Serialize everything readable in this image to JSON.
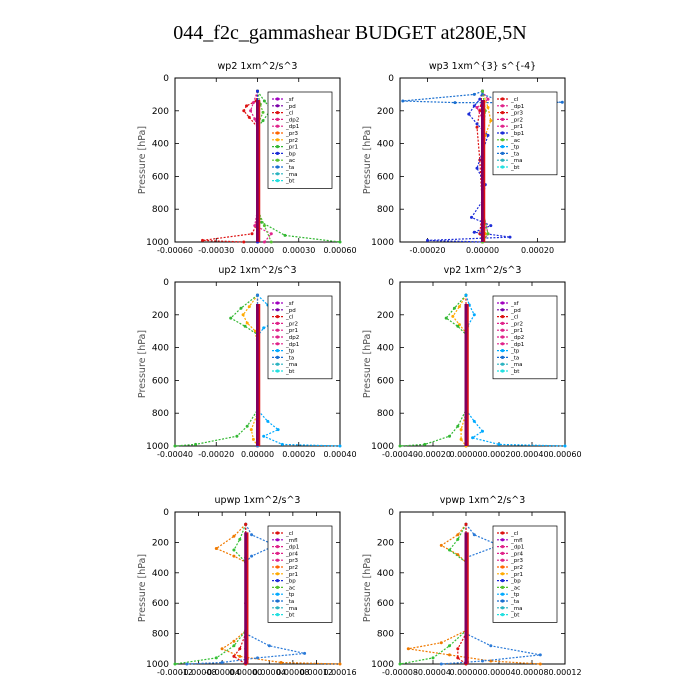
{
  "title": "044_f2c_gammashear  BUDGET at280E,5N",
  "colors": {
    "sf": "#a000c0",
    "pd": "#7a00a8",
    "cl": "#dd1111",
    "dp": "#e0238a",
    "pr1": "#33b833",
    "pr2": "#ffaa00",
    "pr3": "#ff6600",
    "pr4": "#d43030",
    "bp": "#1d2dd8",
    "ac": "#55c030",
    "tp": "#00aaff",
    "ta": "#1a6fd0",
    "ma": "#2bb3c0",
    "bt": "#22e0e0",
    "mfl": "#a000c0",
    "grey": "#8c8c8c",
    "main": "#800060",
    "orange": "#f07a00",
    "green": "#35c035",
    "blue": "#2a7ad8"
  },
  "chart_data": [
    {
      "type": "line",
      "id": "wp2",
      "title": "wp2   1xm^2/s^3",
      "ylabel": "Pressure  [hPa]",
      "ylim": [
        0,
        1000
      ],
      "xlim": [
        -0.0006,
        0.0006
      ],
      "xticks": [
        -0.0006,
        -0.0003,
        0.0,
        0.0003,
        0.0006
      ],
      "xtick_labels": [
        "-0.00060",
        "-0.00030",
        "0.00000",
        "0.00030",
        "0.00060"
      ],
      "yticks": [
        0,
        200,
        400,
        600,
        800,
        1000
      ],
      "legend_entries": [
        "_sf",
        "_pd",
        "_cl",
        "_dp2",
        "_dp1",
        "_pr3",
        "_pr2",
        "_pr1",
        "_bp",
        "_ac",
        "_ta",
        "_ma",
        "_bt"
      ],
      "series": [
        {
          "name": "_sf",
          "color": "sf",
          "x": [
            0,
            0,
            0,
            0,
            0,
            0
          ],
          "y": [
            80,
            200,
            400,
            600,
            800,
            1000
          ]
        },
        {
          "name": "_pd",
          "color": "pd",
          "x": [
            0,
            0,
            0,
            0,
            0,
            0
          ],
          "y": [
            80,
            200,
            400,
            600,
            800,
            1000
          ]
        },
        {
          "name": "_cl",
          "color": "cl",
          "x": [
            0,
            -1e-05,
            -8e-05,
            -0.0001,
            -6e-05,
            0,
            0,
            -1e-05,
            -4e-05,
            -0.0004,
            -0.0001
          ],
          "y": [
            80,
            140,
            170,
            200,
            240,
            300,
            800,
            900,
            950,
            990,
            1000
          ]
        },
        {
          "name": "_dp2",
          "color": "dp",
          "x": [
            0,
            -3e-05,
            -5e-05,
            -2e-05,
            0,
            0,
            -2e-05,
            0.0001,
            5e-05
          ],
          "y": [
            80,
            150,
            200,
            250,
            300,
            800,
            900,
            950,
            1000
          ]
        },
        {
          "name": "_pr1",
          "color": "pr1",
          "x": [
            0,
            5e-05,
            0.0001,
            4e-05,
            0,
            0,
            3e-05,
            0.0002,
            0.0006
          ],
          "y": [
            80,
            140,
            190,
            260,
            300,
            800,
            880,
            960,
            1000
          ]
        },
        {
          "name": "_ac",
          "color": "ac",
          "x": [
            0,
            2e-05,
            4e-05,
            0,
            0,
            5e-05,
            0.0001
          ],
          "y": [
            80,
            160,
            210,
            290,
            800,
            900,
            1000
          ]
        },
        {
          "name": "_bp",
          "color": "bp",
          "x": [
            0,
            0,
            0,
            0,
            0
          ],
          "y": [
            80,
            300,
            600,
            900,
            1000
          ]
        }
      ]
    },
    {
      "type": "line",
      "id": "wp3",
      "title": "wp3   1xm^{3} s^{-4}",
      "ylabel": "Pressure  [hPa]",
      "ylim": [
        0,
        1000
      ],
      "xlim": [
        -0.0003,
        0.0003
      ],
      "xticks": [
        -0.0002,
        0.0,
        0.0002
      ],
      "xtick_labels": [
        "-0.00020",
        "0.00000",
        "0.00020"
      ],
      "yticks": [
        0,
        200,
        400,
        600,
        800,
        1000
      ],
      "legend_entries": [
        "_cl",
        "_dp1",
        "_pr3",
        "_pr2",
        "_pr1",
        "_bp1",
        "_ac",
        "_tp",
        "_ta",
        "_ma",
        "_bt"
      ],
      "series": [
        {
          "name": "_cl",
          "color": "cl",
          "x": [
            0,
            -1e-05,
            -2e-05,
            -1e-05,
            0,
            -1e-05,
            0
          ],
          "y": [
            80,
            200,
            300,
            500,
            800,
            950,
            1000
          ]
        },
        {
          "name": "_bp1",
          "color": "bp",
          "x": [
            0,
            -1e-05,
            -3e-05,
            -5e-05,
            -2e-05,
            2e-05,
            0,
            -2e-05,
            1e-05,
            0,
            -4e-05,
            3e-05,
            -3e-05,
            0.0001,
            -0.0002,
            0
          ],
          "y": [
            80,
            130,
            170,
            220,
            280,
            350,
            450,
            550,
            650,
            750,
            850,
            900,
            940,
            970,
            990,
            1000
          ]
        },
        {
          "name": "_dp1",
          "color": "dp",
          "x": [
            0,
            2e-05,
            -2e-05,
            0,
            0,
            2e-05,
            0
          ],
          "y": [
            80,
            130,
            180,
            250,
            800,
            950,
            1000
          ]
        },
        {
          "name": "_pr1",
          "color": "pr2",
          "x": [
            0,
            2e-05,
            3e-05,
            1e-05,
            0,
            0,
            1e-05,
            0
          ],
          "y": [
            80,
            180,
            260,
            350,
            500,
            800,
            950,
            1000
          ]
        },
        {
          "name": "_ta",
          "color": "ta",
          "x": [
            0,
            -3e-05,
            -0.00029,
            -0.0001,
            0.0001,
            0.00029,
            5e-05,
            0
          ],
          "y": [
            80,
            100,
            140,
            150,
            150,
            148,
            130,
            100
          ]
        },
        {
          "name": "_ac",
          "color": "ac",
          "x": [
            0,
            1e-05,
            0,
            0,
            2e-05,
            0
          ],
          "y": [
            80,
            200,
            400,
            800,
            950,
            1000
          ]
        }
      ]
    },
    {
      "type": "line",
      "id": "up2",
      "title": "up2   1xm^2/s^3",
      "ylabel": "Pressure  [hPa]",
      "ylim": [
        0,
        1000
      ],
      "xlim": [
        -0.0004,
        0.0004
      ],
      "xticks": [
        -0.0004,
        -0.0002,
        0.0,
        0.0002,
        0.0004
      ],
      "xtick_labels": [
        "-0.00040",
        "-0.00020",
        "0.00000",
        "0.00020",
        "0.00040"
      ],
      "yticks": [
        0,
        200,
        400,
        600,
        800,
        1000
      ],
      "legend_entries": [
        "_sf",
        "_pd",
        "_cl",
        "_pr2",
        "_pr1",
        "_dp2",
        "_dp1",
        "_tp",
        "_ta",
        "_ma",
        "_bt"
      ],
      "series": [
        {
          "name": "_cl",
          "color": "cl",
          "x": [
            0,
            0,
            0,
            0,
            0
          ],
          "y": [
            80,
            300,
            600,
            900,
            1000
          ]
        },
        {
          "name": "_pr2",
          "color": "pr2",
          "x": [
            0,
            -4e-05,
            -7e-05,
            -5e-05,
            -1e-05,
            0,
            0,
            -3e-05,
            -2e-05,
            0
          ],
          "y": [
            80,
            150,
            200,
            250,
            300,
            400,
            800,
            900,
            960,
            1000
          ]
        },
        {
          "name": "_pr1",
          "color": "pr1",
          "x": [
            0,
            -8e-05,
            -0.00013,
            -6e-05,
            0,
            0,
            -5e-05,
            -0.0001,
            -0.0003,
            -0.0004
          ],
          "y": [
            80,
            160,
            220,
            270,
            320,
            780,
            880,
            940,
            990,
            1000
          ]
        },
        {
          "name": "_tp",
          "color": "tp",
          "x": [
            0,
            5e-05,
            0.00014,
            3e-05,
            0,
            0,
            5e-05,
            0.0001,
            3e-05,
            0.00012,
            0.0004
          ],
          "y": [
            80,
            140,
            210,
            280,
            330,
            780,
            850,
            900,
            940,
            990,
            1000
          ]
        },
        {
          "name": "_ma",
          "color": "blue",
          "x": [
            0,
            0,
            0,
            0
          ],
          "y": [
            80,
            400,
            800,
            1000
          ]
        }
      ]
    },
    {
      "type": "line",
      "id": "vp2",
      "title": "vp2   1xm^2/s^3",
      "ylabel": "Pressure  [hPa]",
      "ylim": [
        0,
        1000
      ],
      "xlim": [
        -0.0004,
        0.0006
      ],
      "xticks": [
        -0.0004,
        -0.0002,
        0.0,
        0.0002,
        0.0004,
        0.0006
      ],
      "xtick_labels": [
        "-0.00040",
        "-0.00020",
        "0.00000",
        "0.00020",
        "0.00040",
        "0.00060"
      ],
      "yticks": [
        0,
        200,
        400,
        600,
        800,
        1000
      ],
      "legend_entries": [
        "_sf",
        "_pd",
        "_cl",
        "_pr2",
        "_pr1",
        "_dp2",
        "_dp1",
        "_tp",
        "_ta",
        "_ma",
        "_bt"
      ],
      "series": [
        {
          "name": "_cl",
          "color": "cl",
          "x": [
            0,
            0,
            0,
            0,
            0
          ],
          "y": [
            80,
            300,
            600,
            900,
            1000
          ]
        },
        {
          "name": "_pr2",
          "color": "pr2",
          "x": [
            0,
            -4e-05,
            -8e-05,
            -4e-05,
            0,
            0,
            -3e-05,
            -3e-05,
            0
          ],
          "y": [
            80,
            150,
            210,
            260,
            310,
            800,
            900,
            960,
            1000
          ]
        },
        {
          "name": "_pr1",
          "color": "pr1",
          "x": [
            0,
            -7e-05,
            -0.00012,
            -5e-05,
            0,
            0,
            -5e-05,
            -0.0001,
            -0.00025,
            -0.0004
          ],
          "y": [
            80,
            160,
            220,
            270,
            320,
            780,
            880,
            940,
            990,
            1000
          ]
        },
        {
          "name": "_tp",
          "color": "tp",
          "x": [
            0,
            2e-05,
            5e-05,
            1e-05,
            0,
            0,
            5e-05,
            0.0001,
            4e-05,
            0.0002,
            0.0006
          ],
          "y": [
            80,
            140,
            200,
            270,
            320,
            780,
            850,
            910,
            950,
            990,
            1000
          ]
        }
      ]
    },
    {
      "type": "line",
      "id": "upwp",
      "title": "upwp   1xm^2/s^3",
      "ylabel": "Pressure  [hPa]",
      "ylim": [
        0,
        1000
      ],
      "xlim": [
        -0.00012,
        0.00016
      ],
      "xticks": [
        -0.00012,
        -8e-05,
        -4e-05,
        0.0,
        4e-05,
        8e-05,
        0.00012,
        0.00016
      ],
      "xtick_labels": [
        "-0.00012",
        "-0.00008",
        "-0.00004",
        "0.00000",
        "0.00004",
        "0.00008",
        "0.00012",
        "0.00016"
      ],
      "yticks": [
        0,
        200,
        400,
        600,
        800,
        1000
      ],
      "legend_entries": [
        "_cl",
        "_mfl",
        "_dp1",
        "_pr4",
        "_pr3",
        "_pr2",
        "_pr1",
        "_bp",
        "_ac",
        "_tp",
        "_ta",
        "_ma",
        "_bt"
      ],
      "series": [
        {
          "name": "_mfl",
          "color": "main",
          "x": [
            0,
            0,
            0,
            0,
            0
          ],
          "y": [
            80,
            300,
            600,
            900,
            1000
          ]
        },
        {
          "name": "_pr3",
          "color": "orange",
          "x": [
            0,
            -2e-05,
            -5e-05,
            -2e-05,
            0,
            0,
            -2e-05,
            -4e-05,
            -1e-05,
            6e-05,
            0.00016
          ],
          "y": [
            80,
            160,
            240,
            290,
            330,
            780,
            850,
            900,
            950,
            990,
            1000
          ]
        },
        {
          "name": "_pr1",
          "color": "green",
          "x": [
            0,
            -1e-05,
            -2e-05,
            0,
            0,
            -2e-05,
            -5e-05,
            -0.00012
          ],
          "y": [
            80,
            180,
            250,
            330,
            780,
            880,
            960,
            1000
          ]
        },
        {
          "name": "_tp",
          "color": "blue",
          "x": [
            0,
            1e-05,
            5e-05,
            1e-05,
            0,
            0,
            4e-05,
            0.0001,
            2e-05,
            -4e-05,
            -0.0001
          ],
          "y": [
            80,
            150,
            220,
            290,
            330,
            800,
            880,
            930,
            960,
            990,
            1000
          ]
        },
        {
          "name": "_cl",
          "color": "cl",
          "x": [
            0,
            0,
            -1e-05,
            -2e-05,
            0
          ],
          "y": [
            80,
            800,
            900,
            950,
            1000
          ]
        }
      ]
    },
    {
      "type": "line",
      "id": "vpwp",
      "title": "vpwp   1xm^2/s^3",
      "ylabel": "Pressure  [hPa]",
      "ylim": [
        0,
        1000
      ],
      "xlim": [
        -8e-05,
        0.00012
      ],
      "xticks": [
        -8e-05,
        -4e-05,
        0.0,
        4e-05,
        8e-05,
        0.00012
      ],
      "xtick_labels": [
        "-0.00008",
        "-0.00004",
        "0.00000",
        "0.00004",
        "0.00008",
        "0.00012"
      ],
      "yticks": [
        0,
        200,
        400,
        600,
        800,
        1000
      ],
      "legend_entries": [
        "_cl",
        "_mfl",
        "_dp1",
        "_pr4",
        "_pr3",
        "_pr2",
        "_pr1",
        "_bp",
        "_ac",
        "_tp",
        "_ta",
        "_ma",
        "_bt"
      ],
      "series": [
        {
          "name": "_mfl",
          "color": "main",
          "x": [
            0,
            0,
            0,
            0,
            0
          ],
          "y": [
            80,
            300,
            600,
            900,
            1000
          ]
        },
        {
          "name": "_pr3",
          "color": "orange",
          "x": [
            0,
            -1e-05,
            -3e-05,
            -1e-05,
            0,
            0,
            -3e-05,
            -7e-05,
            -2e-05,
            3e-05,
            9e-05
          ],
          "y": [
            80,
            150,
            220,
            280,
            330,
            780,
            860,
            900,
            940,
            980,
            1000
          ]
        },
        {
          "name": "_pr1",
          "color": "green",
          "x": [
            0,
            -1e-05,
            -2e-05,
            0,
            0,
            -2e-05,
            -4e-05,
            -8e-05
          ],
          "y": [
            80,
            180,
            250,
            330,
            780,
            880,
            960,
            1000
          ]
        },
        {
          "name": "_tp",
          "color": "blue",
          "x": [
            0,
            1e-05,
            4e-05,
            0,
            0,
            3e-05,
            9e-05,
            2e-05,
            -3e-05
          ],
          "y": [
            80,
            150,
            220,
            300,
            800,
            880,
            940,
            980,
            1000
          ]
        },
        {
          "name": "_cl",
          "color": "cl",
          "x": [
            0,
            0,
            -1e-05,
            -1e-05,
            0
          ],
          "y": [
            80,
            800,
            900,
            960,
            1000
          ]
        }
      ]
    }
  ]
}
